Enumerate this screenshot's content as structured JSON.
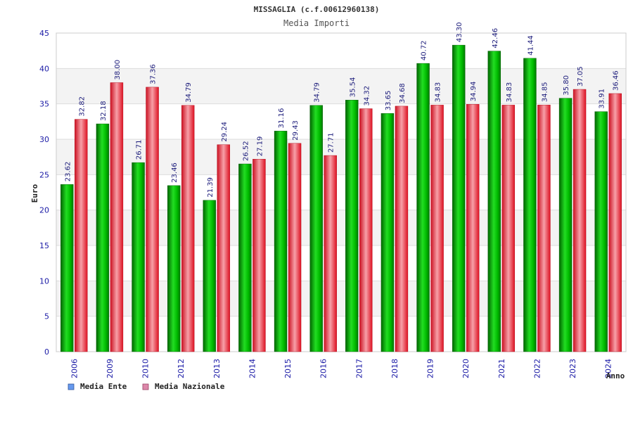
{
  "chart_data": {
    "type": "bar",
    "title": "MISSAGLIA (c.f.00612960138)",
    "subtitle": "Media Importi",
    "xlabel": "Anno",
    "ylabel": "Euro",
    "ylim": [
      0,
      45
    ],
    "yticks": [
      0,
      5,
      10,
      15,
      20,
      25,
      30,
      35,
      40,
      45
    ],
    "grid": true,
    "legend_position": "bottom-left",
    "categories": [
      "2006",
      "2009",
      "2010",
      "2012",
      "2013",
      "2014",
      "2015",
      "2016",
      "2017",
      "2018",
      "2019",
      "2020",
      "2021",
      "2022",
      "2023",
      "2024"
    ],
    "series": [
      {
        "name": "Media Ente",
        "color": "#00bb00",
        "legend_color": "#6699ee",
        "values": [
          23.62,
          32.18,
          26.71,
          23.46,
          21.39,
          26.52,
          31.16,
          34.79,
          35.54,
          33.65,
          40.72,
          43.3,
          42.46,
          41.44,
          35.8,
          33.91
        ],
        "labels": [
          "23.62",
          "32.18",
          "26.71",
          "23.46",
          "21.39",
          "26.52",
          "31.16",
          "34.79",
          "35.54",
          "33.65",
          "40.72",
          "43.30",
          "42.46",
          "41.44",
          "35.80",
          "33.91"
        ]
      },
      {
        "name": "Media Nazionale",
        "color": "#ee2233",
        "legend_color": "#dd88aa",
        "values": [
          32.82,
          38.0,
          37.36,
          34.79,
          29.24,
          27.19,
          29.43,
          27.71,
          34.32,
          34.68,
          34.83,
          34.94,
          34.83,
          34.85,
          37.05,
          36.46
        ],
        "labels": [
          "32.82",
          "38.00",
          "37.36",
          "34.79",
          "29.24",
          "27.19",
          "29.43",
          "27.71",
          "34.32",
          "34.68",
          "34.83",
          "34.94",
          "34.83",
          "34.85",
          "37.05",
          "36.46"
        ]
      }
    ]
  }
}
